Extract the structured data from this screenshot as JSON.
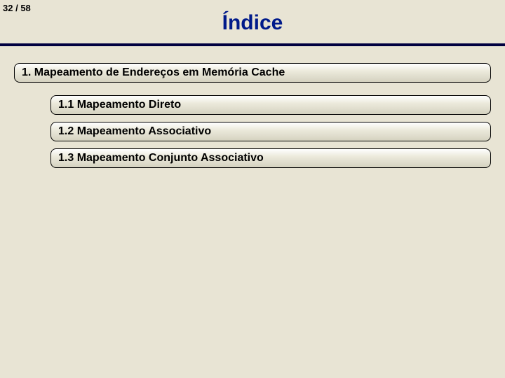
{
  "page": {
    "current": 32,
    "total": 58,
    "separator": " / "
  },
  "title": "Índice",
  "colors": {
    "background": "#e8e4d4",
    "title_color": "#001a8a",
    "hr_color": "#000040",
    "item_border": "#000000",
    "item_gradient_top": "#ffffff",
    "item_gradient_mid": "#eceadc",
    "item_gradient_bottom": "#d5d2c0"
  },
  "typography": {
    "title_fontsize": 30,
    "item_fontsize": 16,
    "page_number_fontsize": 13
  },
  "toc": {
    "main": {
      "label": "1. Mapeamento de Endereços em Memória Cache"
    },
    "subs": [
      {
        "label": "1.1 Mapeamento Direto"
      },
      {
        "label": "1.2 Mapeamento Associativo"
      },
      {
        "label": "1.3 Mapeamento Conjunto Associativo"
      }
    ]
  }
}
